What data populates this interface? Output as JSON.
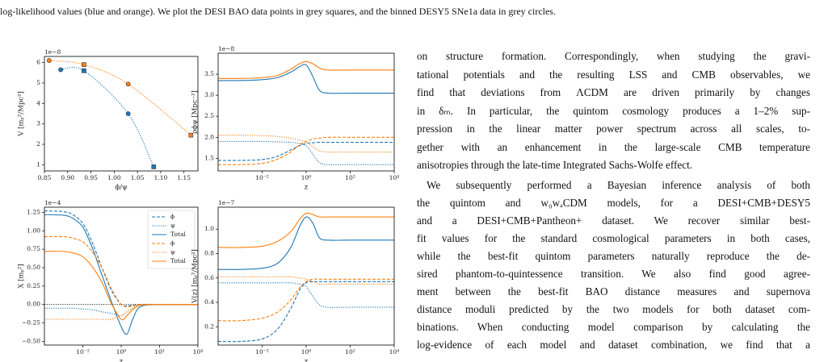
{
  "caption": "log-likelihood values (blue and orange). We plot the DESI BAO data points in grey squares, and the binned DESY5 SNe1a data in grey circles.",
  "chart_data": [
    {
      "type": "line",
      "xscale": "linear",
      "offset_label": "1e−8",
      "xlabel": "ϕ/ψ",
      "ylabel": "V [mₚ²/Mpc²]",
      "xlim": [
        0.85,
        1.18
      ],
      "ylim": [
        0.7,
        6.3
      ],
      "xticks": [
        0.85,
        {
          "value": 0.9,
          "label": "0.90"
        },
        0.95,
        {
          "value": 1.0,
          "label": "1.00"
        },
        1.05,
        {
          "value": 1.1,
          "label": "1.10"
        },
        1.15
      ],
      "yticks": [
        1,
        2,
        3,
        4,
        5,
        6
      ],
      "series": [
        {
          "color": "#1f77b4",
          "style": "dotted",
          "markers": [
            "circle",
            "square",
            "circle",
            "square"
          ],
          "x": [
            0.885,
            0.935,
            1.03,
            1.085
          ],
          "values": [
            5.65,
            5.6,
            3.5,
            0.9
          ]
        },
        {
          "color": "#ff7f0e",
          "style": "dotted",
          "markers": [
            "circle",
            "square",
            "circle",
            "square"
          ],
          "x": [
            0.86,
            0.935,
            1.03,
            1.165
          ],
          "values": [
            6.1,
            5.9,
            4.95,
            2.45
          ]
        }
      ]
    },
    {
      "type": "line",
      "xscale": "log",
      "offset_label": "1e−8",
      "xlabel": "z",
      "ylabel": "ρϕψ [Mpc⁻²]",
      "xlim": [
        0.0001,
        10000
      ],
      "ylim": [
        1.2,
        4.0
      ],
      "xticks": [
        {
          "value": 0.01,
          "label": "10⁻²"
        },
        {
          "value": 1,
          "label": "10⁰"
        },
        {
          "value": 100,
          "label": "10²"
        },
        {
          "value": 10000,
          "label": "10⁴"
        }
      ],
      "yticks": [
        1.5,
        {
          "value": 2,
          "label": "2.0"
        },
        2.5,
        {
          "value": 3,
          "label": "3.0"
        },
        3.5
      ],
      "x": [
        0.0001,
        0.001,
        0.01,
        0.05,
        0.2,
        0.5,
        1,
        2,
        4,
        10,
        100,
        10000
      ],
      "series": [
        {
          "color": "#1f77b4",
          "style": "solid",
          "values": [
            3.35,
            3.35,
            3.37,
            3.42,
            3.55,
            3.68,
            3.72,
            3.45,
            3.12,
            3.05,
            3.05,
            3.05
          ]
        },
        {
          "color": "#ff7f0e",
          "style": "solid",
          "values": [
            3.4,
            3.4,
            3.42,
            3.47,
            3.62,
            3.75,
            3.8,
            3.75,
            3.65,
            3.6,
            3.6,
            3.6
          ]
        },
        {
          "color": "#1f77b4",
          "style": "dashed",
          "values": [
            1.45,
            1.45,
            1.47,
            1.55,
            1.7,
            1.8,
            1.85,
            1.87,
            1.88,
            1.88,
            1.88,
            1.88
          ]
        },
        {
          "color": "#ff7f0e",
          "style": "dashed",
          "values": [
            1.35,
            1.35,
            1.38,
            1.48,
            1.65,
            1.82,
            1.9,
            1.96,
            1.98,
            2.0,
            2.0,
            2.0
          ]
        },
        {
          "color": "#1f77b4",
          "style": "dotted",
          "values": [
            1.9,
            1.9,
            1.9,
            1.89,
            1.88,
            1.85,
            1.8,
            1.6,
            1.4,
            1.35,
            1.35,
            1.35
          ]
        },
        {
          "color": "#ff7f0e",
          "style": "dotted",
          "values": [
            2.05,
            2.05,
            2.04,
            2.02,
            1.98,
            1.93,
            1.88,
            1.78,
            1.68,
            1.65,
            1.65,
            1.65
          ]
        }
      ]
    },
    {
      "type": "line",
      "xscale": "log",
      "offset_label": "1e−4",
      "xlabel": "z",
      "ylabel": "X [mₚ²]",
      "xlim": [
        0.0001,
        10000
      ],
      "ylim": [
        -0.55,
        1.32
      ],
      "hline": 0,
      "legend": "upper right",
      "xticks": [
        {
          "value": 0.01,
          "label": "10⁻²"
        },
        {
          "value": 1,
          "label": "10⁰"
        },
        {
          "value": 100,
          "label": "10²"
        },
        {
          "value": 10000,
          "label": "10⁴"
        }
      ],
      "yticks": [
        {
          "value": -0.5,
          "label": "−0.50"
        },
        {
          "value": -0.25,
          "label": "−0.25"
        },
        {
          "value": 0,
          "label": "0.00"
        },
        0.25,
        {
          "value": 0.5,
          "label": "0.50"
        },
        0.75,
        {
          "value": 1,
          "label": "1.00"
        },
        1.25
      ],
      "x": [
        0.0001,
        0.001,
        0.003,
        0.01,
        0.03,
        0.1,
        0.3,
        1,
        2,
        4,
        10,
        100,
        10000
      ],
      "series": [
        {
          "name": "ϕ",
          "color": "#1f77b4",
          "style": "dashed",
          "values": [
            1.27,
            1.26,
            1.22,
            1.1,
            0.85,
            0.5,
            0.2,
            0.0,
            -0.02,
            -0.01,
            0,
            0,
            0
          ]
        },
        {
          "name": "ψ",
          "color": "#1f77b4",
          "style": "dotted",
          "values": [
            -0.05,
            -0.05,
            -0.05,
            -0.06,
            -0.07,
            -0.1,
            -0.12,
            -0.15,
            -0.1,
            -0.05,
            0,
            0,
            0
          ]
        },
        {
          "name": "Total",
          "color": "#1f77b4",
          "style": "solid",
          "values": [
            1.22,
            1.21,
            1.17,
            1.05,
            0.78,
            0.4,
            0.05,
            -0.3,
            -0.4,
            -0.2,
            -0.03,
            0,
            0
          ]
        },
        {
          "name": "ϕ",
          "color": "#ff7f0e",
          "style": "dashed",
          "values": [
            0.92,
            0.92,
            0.9,
            0.85,
            0.72,
            0.5,
            0.22,
            0.0,
            -0.03,
            -0.02,
            0,
            0,
            0
          ]
        },
        {
          "name": "ψ",
          "color": "#ff7f0e",
          "style": "dotted",
          "values": [
            -0.2,
            -0.2,
            -0.2,
            -0.2,
            -0.2,
            -0.2,
            -0.2,
            -0.15,
            -0.1,
            -0.05,
            0,
            0,
            0
          ]
        },
        {
          "name": "Total",
          "color": "#ff7f0e",
          "style": "solid",
          "values": [
            0.72,
            0.72,
            0.7,
            0.65,
            0.52,
            0.3,
            0.02,
            -0.2,
            -0.15,
            -0.07,
            -0.01,
            0,
            0
          ]
        }
      ]
    },
    {
      "type": "line",
      "xscale": "log",
      "offset_label": "1e−7",
      "xlabel": "z",
      "ylabel": "V(z) [mₚ²/Mpc²]",
      "xlim": [
        0.0001,
        10000
      ],
      "ylim": [
        0.05,
        1.18
      ],
      "xticks": [
        {
          "value": 0.01,
          "label": "10⁻²"
        },
        {
          "value": 1,
          "label": "10⁰"
        },
        {
          "value": 100,
          "label": "10²"
        },
        {
          "value": 10000,
          "label": "10⁴"
        }
      ],
      "yticks": [
        0.2,
        0.4,
        0.6,
        0.8,
        {
          "value": 1,
          "label": "1.0"
        }
      ],
      "x": [
        0.0001,
        0.001,
        0.01,
        0.05,
        0.2,
        0.5,
        1,
        2,
        4,
        10,
        100,
        10000
      ],
      "series": [
        {
          "color": "#ff7f0e",
          "style": "solid",
          "values": [
            0.85,
            0.85,
            0.86,
            0.9,
            0.98,
            1.08,
            1.13,
            1.12,
            1.1,
            1.1,
            1.1,
            1.1
          ]
        },
        {
          "color": "#1f77b4",
          "style": "solid",
          "values": [
            0.67,
            0.67,
            0.68,
            0.72,
            0.85,
            1.02,
            1.1,
            1.05,
            0.93,
            0.91,
            0.91,
            0.91
          ]
        },
        {
          "color": "#ff7f0e",
          "style": "dotted",
          "values": [
            0.61,
            0.61,
            0.61,
            0.61,
            0.61,
            0.6,
            0.59,
            0.57,
            0.55,
            0.55,
            0.55,
            0.55
          ]
        },
        {
          "color": "#1f77b4",
          "style": "dotted",
          "values": [
            0.56,
            0.56,
            0.56,
            0.56,
            0.56,
            0.55,
            0.53,
            0.45,
            0.38,
            0.36,
            0.36,
            0.36
          ]
        },
        {
          "color": "#ff7f0e",
          "style": "dashed",
          "values": [
            0.25,
            0.25,
            0.27,
            0.32,
            0.42,
            0.52,
            0.57,
            0.59,
            0.59,
            0.59,
            0.59,
            0.59
          ]
        },
        {
          "color": "#1f77b4",
          "style": "dashed",
          "values": [
            0.08,
            0.08,
            0.1,
            0.18,
            0.35,
            0.5,
            0.56,
            0.57,
            0.57,
            0.57,
            0.57,
            0.57
          ]
        }
      ]
    }
  ],
  "paragraphs": [
    [
      "on structure formation. Correspondingly, when studying the gravi-",
      "tational potentials and the resulting LSS and CMB observables, we",
      "find that deviations from ΛCDM are driven primarily by changes",
      "in δₘ. In particular, the quintom cosmology produces a 1–2% sup-",
      "pression in the linear matter power spectrum across all scales, to-",
      "gether with an enhancement in the large-scale CMB temperature",
      "anisotropies through the late-time Integrated Sachs-Wolfe effect."
    ],
    [
      "We subsequently performed a Bayesian inference analysis of both",
      "the quintom and w₀wₐCDM models, for a DESI+CMB+DESY5",
      "and a DESI+CMB+Pantheon+ dataset. We recover similar best-",
      "fit values for the standard cosmological parameters in both cases,",
      "while the best-fit quintom parameters naturally reproduce the de-",
      "sired phantom-to-quintessence transition. We also find good agree-",
      "ment between the best-fit BAO distance measures and supernova",
      "distance moduli predicted by the two models for both dataset com-",
      "binations. When conducting model comparison by calculating the",
      "log-evidence of each model and dataset combination, we find that a"
    ]
  ]
}
